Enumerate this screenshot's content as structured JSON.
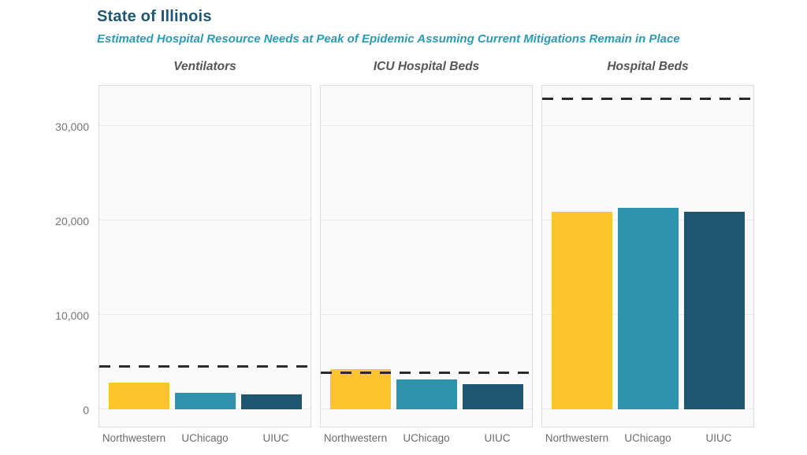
{
  "header": {
    "title": "State of Illinois",
    "subtitle": "Estimated Hospital Resource Needs at Peak of Epidemic Assuming Current Mitigations Remain in Place"
  },
  "colors": {
    "title_text": "#1f5673",
    "subtitle_text": "#2b9ab5",
    "panel_title_text": "#555555",
    "axis_text": "#757575",
    "panel_background": "#fafafa",
    "gridline": "#e9e9e9",
    "capacity_line": "#2b2b2b"
  },
  "chart_data": {
    "type": "bar",
    "title": "State of Illinois",
    "subtitle": "Estimated Hospital Resource Needs at Peak of Epidemic Assuming Current Mitigations Remain in Place",
    "categories": [
      "Northwestern",
      "UChicago",
      "UIUC"
    ],
    "series_colors": [
      "#fdc42d",
      "#2e93ac",
      "#1f566f"
    ],
    "y_axis": {
      "ticks": [
        0,
        10000,
        20000,
        30000
      ],
      "tick_labels": [
        "0",
        "10,000",
        "20,000",
        "30,000"
      ],
      "range": [
        0,
        34500
      ],
      "grid": true
    },
    "legend": "none",
    "capacity_line_style": "dashed",
    "panels": [
      {
        "title": "Ventilators",
        "capacity_line": 4450,
        "values": [
          2800,
          1750,
          1550
        ]
      },
      {
        "title": "ICU Hospital Beds",
        "capacity_line": 3750,
        "values": [
          4250,
          3150,
          2700
        ]
      },
      {
        "title": "Hospital Beds",
        "capacity_line": 32750,
        "values": [
          20900,
          21300,
          20900
        ]
      }
    ]
  }
}
